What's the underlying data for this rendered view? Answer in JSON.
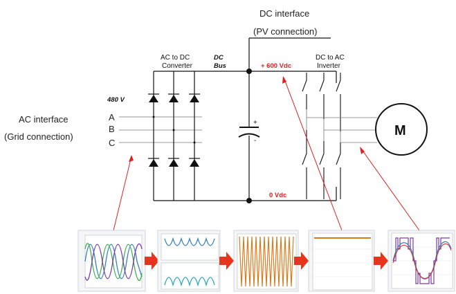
{
  "labels": {
    "dc_interface": "DC interface",
    "pv_connection": "(PV connection)",
    "ac_interface": "AC interface",
    "grid_connection": "(Grid connection)",
    "voltage_480": "480 V",
    "phase_a": "A",
    "phase_b": "B",
    "phase_c": "C",
    "ac_dc_line1": "AC to DC",
    "ac_dc_line2": "Converter",
    "dc_bus_line1": "DC",
    "dc_bus_line2": "Bus",
    "plus_600": "+ 600 Vdc",
    "zero_vdc": "0 Vdc",
    "dc_ac_line1": "DC to AC",
    "dc_ac_line2": "Inverter",
    "motor": "M",
    "cap_plus": "+",
    "cap_minus": "-"
  },
  "waveform_panels": [
    {
      "name": "three-phase-input"
    },
    {
      "name": "rectified-output"
    },
    {
      "name": "rectifier-ripple"
    },
    {
      "name": "dc-bus-voltage"
    },
    {
      "name": "inverter-output"
    }
  ],
  "colors": {
    "annotation_red": "#e02020",
    "arrow_red": "#e8341c",
    "dc_bus_orange": "#d97a1e",
    "wave_blue": "#2f7fc1",
    "wave_green": "#3bb34a",
    "wave_purple": "#7a3aa8",
    "wave_teal": "#2aa8b8",
    "wire": "#111111"
  }
}
